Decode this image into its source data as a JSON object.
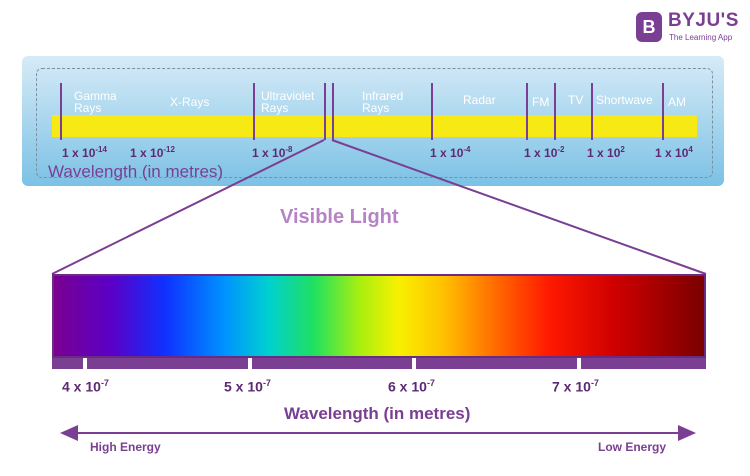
{
  "logo": {
    "mark": "B",
    "name": "BYJU'S",
    "tagline": "The Learning App"
  },
  "spectrum": {
    "bands": [
      {
        "line1": "Gamma",
        "line2": "Rays"
      },
      {
        "line1": "X-Rays",
        "line2": ""
      },
      {
        "line1": "Ultraviolet",
        "line2": "Rays"
      },
      {
        "line1": "Infrared",
        "line2": "Rays"
      },
      {
        "line1": "Radar",
        "line2": ""
      },
      {
        "line1": "FM",
        "line2": ""
      },
      {
        "line1": "TV",
        "line2": ""
      },
      {
        "line1": "Shortwave",
        "line2": ""
      },
      {
        "line1": "AM",
        "line2": ""
      }
    ],
    "ticks": [
      {
        "base": "1 x 10",
        "exp": "-14"
      },
      {
        "base": "1 x 10",
        "exp": "-12"
      },
      {
        "base": "1 x 10",
        "exp": "-8"
      },
      {
        "base": "1 x 10",
        "exp": "-4"
      },
      {
        "base": "1 x 10",
        "exp": "-2"
      },
      {
        "base": "1 x 10",
        "exp": "2"
      },
      {
        "base": "1 x 10",
        "exp": "4"
      }
    ],
    "axis_label": "Wavelength (in metres)",
    "band_color": "#f7ea14"
  },
  "visible": {
    "title": "Visible Light",
    "ticks": [
      {
        "base": "4 x 10",
        "exp": "-7"
      },
      {
        "base": "5 x 10",
        "exp": "-7"
      },
      {
        "base": "6 x 10",
        "exp": "-7"
      },
      {
        "base": "7 x 10",
        "exp": "-7"
      }
    ],
    "axis_label": "Wavelength (in metres)",
    "left_label": "High Energy",
    "right_label": "Low Energy",
    "accent_color": "#7a3f92"
  }
}
